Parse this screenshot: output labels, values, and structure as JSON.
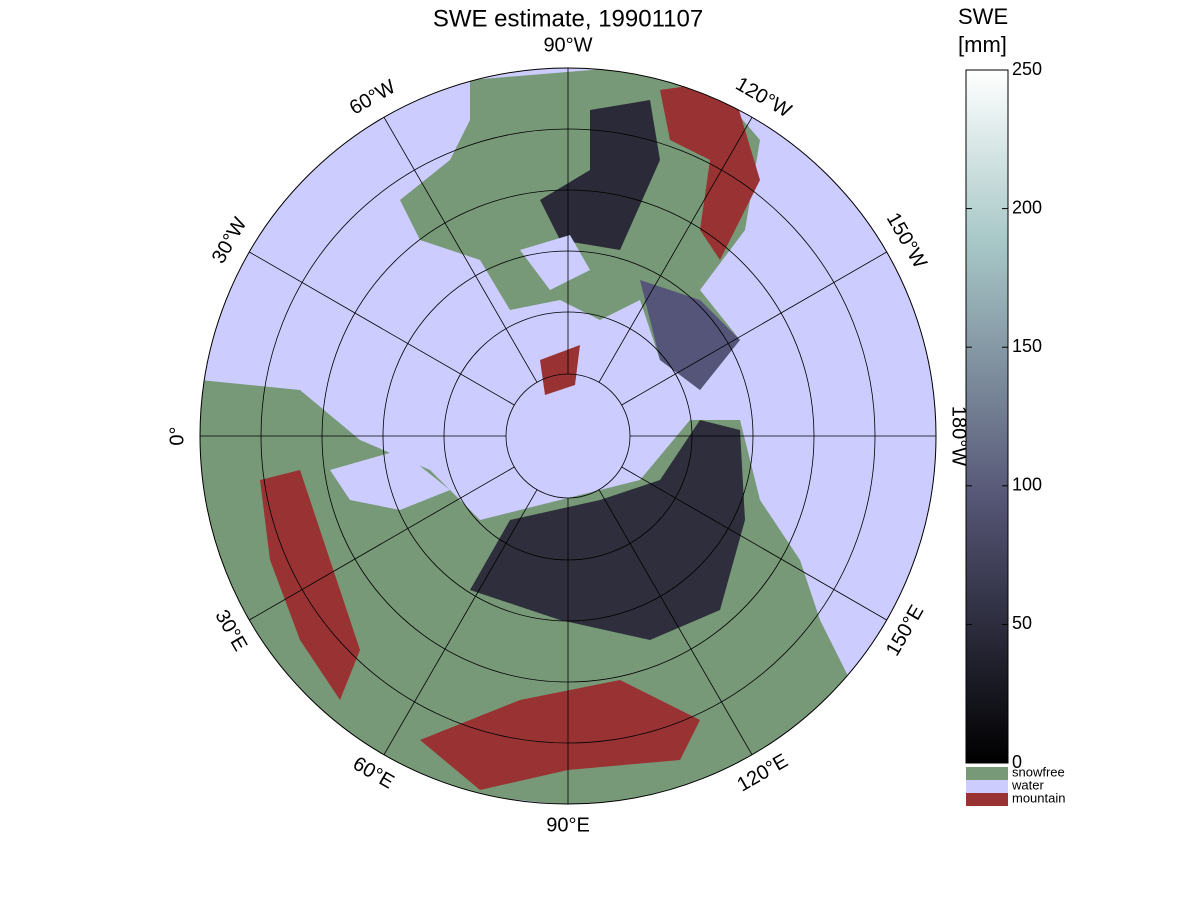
{
  "map": {
    "title": "SWE estimate, 19901107",
    "meridian_labels": [
      "90°W",
      "120°W",
      "150°W",
      "180°W",
      "150°E",
      "120°E",
      "90°E",
      "60°E",
      "30°E",
      "0°",
      "30°W",
      "60°W"
    ],
    "colorbar": {
      "label": [
        "SWE",
        "[mm]"
      ],
      "lim": [
        0,
        250
      ],
      "ticks": [
        0,
        50,
        100,
        150,
        200,
        250
      ]
    },
    "legend": [
      {
        "name": "snowfree",
        "color": "#779977"
      },
      {
        "name": "water",
        "color": "#ccccff"
      },
      {
        "name": "mountain",
        "color": "#993333"
      }
    ]
  }
}
